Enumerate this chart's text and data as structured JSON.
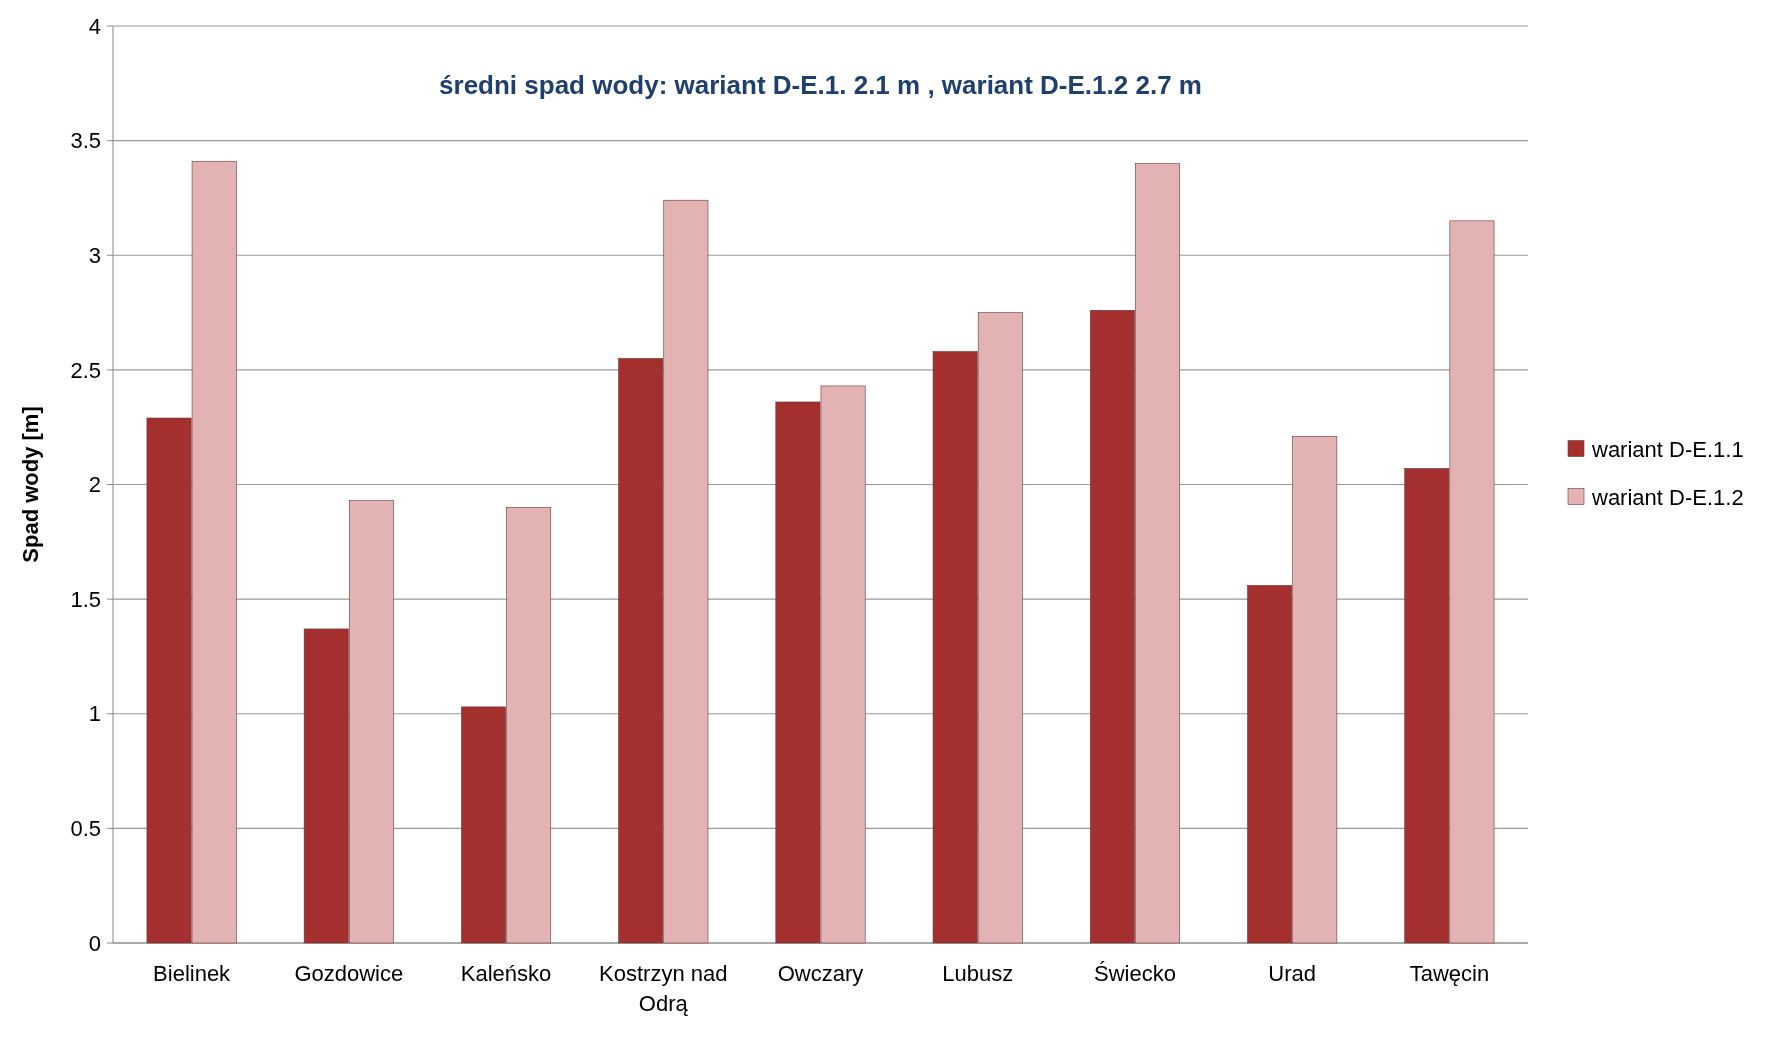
{
  "chart_data": {
    "type": "bar",
    "title": "średni spad wody: wariant D-E.1.  2.1 m , wariant D-E.1.2  2.7 m",
    "ylabel": "Spad wody [m]",
    "categories": [
      "Bielinek",
      "Gozdowice",
      "Kaleńsko",
      "Kostrzyn nad Odrą",
      "Owczary",
      "Lubusz",
      "Świecko",
      "Urad",
      "Tawęcin"
    ],
    "series": [
      {
        "name": "wariant D-E.1.1",
        "color": "#a3302f",
        "values": [
          2.29,
          1.37,
          1.03,
          2.55,
          2.36,
          2.58,
          2.76,
          1.56,
          2.07
        ]
      },
      {
        "name": "wariant D-E.1.2",
        "color": "#e3b3b3",
        "values": [
          3.41,
          1.93,
          1.9,
          3.24,
          2.43,
          2.75,
          3.4,
          2.21,
          3.15
        ]
      }
    ],
    "ylim": [
      0,
      4
    ],
    "yticks": [
      0,
      0.5,
      1,
      1.5,
      2,
      2.5,
      3,
      3.5,
      4
    ],
    "grid": "y",
    "legend": "right"
  }
}
